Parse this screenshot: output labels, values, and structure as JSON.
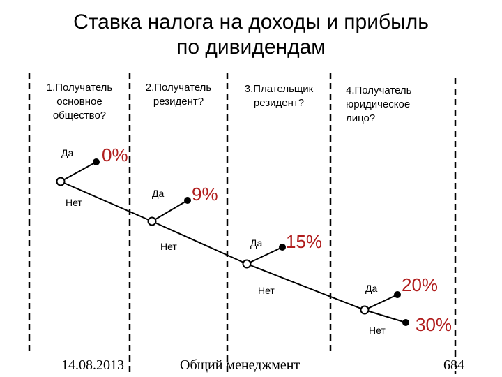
{
  "title": {
    "line1": "Ставка налога на доходы и прибыль",
    "line2": "по дивидендам"
  },
  "questions": [
    {
      "lines": [
        "1.Получатель",
        "основное",
        "общество?"
      ]
    },
    {
      "lines": [
        "2.Получатель",
        "резидент?"
      ]
    },
    {
      "lines": [
        "3.Плательщик",
        "резидент?"
      ]
    },
    {
      "lines": [
        "4.Получатель",
        "юридическое",
        "лицо?"
      ]
    }
  ],
  "nodes": [
    {
      "yes_label": "Да",
      "no_label": "Нет",
      "rate": "0%"
    },
    {
      "yes_label": "Да",
      "no_label": "Нет",
      "rate": "9%"
    },
    {
      "yes_label": "Да",
      "no_label": "Нет",
      "rate": "15%"
    },
    {
      "yes_label": "Да",
      "no_label": "Нет",
      "rate": "20%"
    }
  ],
  "final_rate": "30%",
  "colors": {
    "rate": "#b01c1c",
    "line": "#000000"
  },
  "footer": {
    "date": "14.08.2013",
    "course": "Общий менеджмент",
    "page": "684"
  }
}
